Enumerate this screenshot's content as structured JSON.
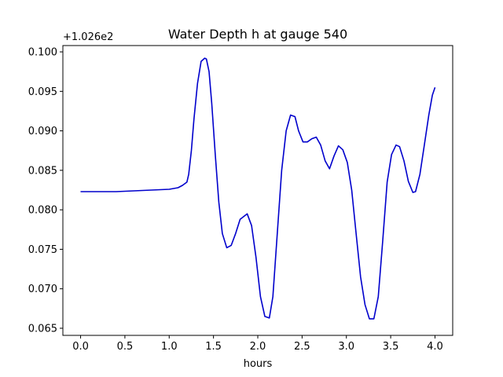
{
  "chart_data": {
    "type": "line",
    "title": "Water Depth h at gauge 540",
    "xlabel": "hours",
    "ylabel": "",
    "y_offset_label": "+1.026e2",
    "xlim": [
      -0.2,
      4.2
    ],
    "ylim": [
      0.0641,
      0.1008
    ],
    "x_ticks": [
      0.0,
      0.5,
      1.0,
      1.5,
      2.0,
      2.5,
      3.0,
      3.5,
      4.0
    ],
    "x_tick_labels": [
      "0.0",
      "0.5",
      "1.0",
      "1.5",
      "2.0",
      "2.5",
      "3.0",
      "3.5",
      "4.0"
    ],
    "y_ticks": [
      0.065,
      0.07,
      0.075,
      0.08,
      0.085,
      0.09,
      0.095,
      0.1
    ],
    "y_tick_labels": [
      "0.065",
      "0.070",
      "0.075",
      "0.080",
      "0.085",
      "0.090",
      "0.095",
      "0.100"
    ],
    "grid": false,
    "series": [
      {
        "color": "#0000cc",
        "x": [
          0.0,
          0.2,
          0.4,
          0.6,
          0.8,
          1.0,
          1.1,
          1.15,
          1.2,
          1.22,
          1.25,
          1.28,
          1.32,
          1.36,
          1.4,
          1.42,
          1.45,
          1.48,
          1.52,
          1.56,
          1.6,
          1.65,
          1.7,
          1.75,
          1.8,
          1.88,
          1.93,
          1.98,
          2.03,
          2.08,
          2.13,
          2.17,
          2.22,
          2.27,
          2.32,
          2.37,
          2.42,
          2.46,
          2.51,
          2.56,
          2.61,
          2.66,
          2.71,
          2.76,
          2.81,
          2.86,
          2.91,
          2.96,
          3.01,
          3.06,
          3.11,
          3.16,
          3.21,
          3.26,
          3.31,
          3.36,
          3.41,
          3.46,
          3.51,
          3.56,
          3.6,
          3.65,
          3.7,
          3.75,
          3.78,
          3.83,
          3.88,
          3.93,
          3.97,
          4.0
        ],
        "y": [
          0.0823,
          0.0823,
          0.0823,
          0.0824,
          0.0825,
          0.0826,
          0.0828,
          0.0831,
          0.0835,
          0.0845,
          0.0875,
          0.0915,
          0.096,
          0.0988,
          0.0992,
          0.0991,
          0.0975,
          0.0935,
          0.087,
          0.081,
          0.077,
          0.0752,
          0.0755,
          0.077,
          0.0788,
          0.0795,
          0.078,
          0.074,
          0.069,
          0.0665,
          0.0663,
          0.069,
          0.077,
          0.085,
          0.09,
          0.092,
          0.0918,
          0.09,
          0.0886,
          0.0886,
          0.089,
          0.0892,
          0.0882,
          0.0862,
          0.0852,
          0.0868,
          0.0881,
          0.0876,
          0.086,
          0.0825,
          0.077,
          0.0715,
          0.068,
          0.0662,
          0.0662,
          0.069,
          0.076,
          0.0835,
          0.087,
          0.0882,
          0.088,
          0.0862,
          0.0836,
          0.0822,
          0.0823,
          0.0845,
          0.0882,
          0.092,
          0.0945,
          0.0955
        ]
      }
    ]
  }
}
